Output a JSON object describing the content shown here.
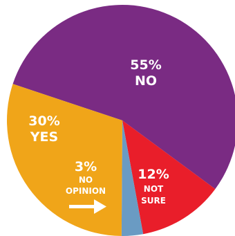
{
  "chart_data": {
    "type": "pie",
    "slices": [
      {
        "label": "NO",
        "value": 55,
        "pct_label": "55%",
        "color": "#7a2b83"
      },
      {
        "label": "NOT SURE",
        "value": 12,
        "pct_label": "12%",
        "color": "#e91e2a"
      },
      {
        "label": "NO OPINION",
        "value": 3,
        "pct_label": "3%",
        "color": "#6a9bc3"
      },
      {
        "label": "YES",
        "value": 30,
        "pct_label": "30%",
        "color": "#f0a519"
      }
    ],
    "label_color": "#ffffff",
    "arrow_icon": "right-arrow-icon"
  }
}
